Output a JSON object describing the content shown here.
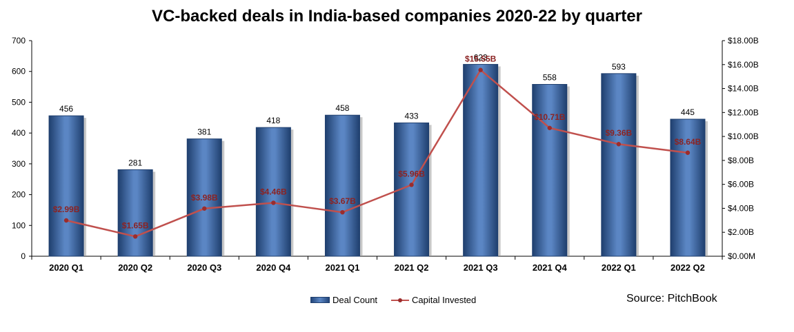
{
  "title": "VC-backed deals in India-based companies 2020-22 by quarter",
  "source": "Source: PitchBook",
  "legend": {
    "bar_label": "Deal Count",
    "line_label": "Capital Invested"
  },
  "colors": {
    "bar": "#4f7fbf",
    "bar_dark": "#23467a",
    "line": "#c0504d",
    "marker": "#9b2c2c",
    "line_label": "#8b2323"
  },
  "chart_data": {
    "type": "bar",
    "title": "VC-backed deals in India-based companies 2020-22 by quarter",
    "categories": [
      "2020 Q1",
      "2020 Q2",
      "2020 Q3",
      "2020 Q4",
      "2021 Q1",
      "2021 Q2",
      "2021 Q3",
      "2021 Q4",
      "2022 Q1",
      "2022 Q2"
    ],
    "series": [
      {
        "name": "Deal Count",
        "type": "bar",
        "axis": "left",
        "values": [
          456,
          281,
          381,
          418,
          458,
          433,
          623,
          558,
          593,
          445
        ]
      },
      {
        "name": "Capital Invested",
        "type": "line",
        "axis": "right",
        "values": [
          2.99,
          1.65,
          3.98,
          4.46,
          3.67,
          5.96,
          15.55,
          10.71,
          9.36,
          8.64
        ],
        "value_labels": [
          "$2.99B",
          "$1.65B",
          "$3.98B",
          "$4.46B",
          "$3.67B",
          "$5.96B",
          "$15.55B",
          "$10.71B",
          "$9.36B",
          "$8.64B"
        ]
      }
    ],
    "y_left": {
      "lim": [
        0,
        700
      ],
      "ticks": [
        0,
        100,
        200,
        300,
        400,
        500,
        600,
        700
      ],
      "tick_labels": [
        "0",
        "100",
        "200",
        "300",
        "400",
        "500",
        "600",
        "700"
      ]
    },
    "y_right": {
      "lim": [
        0,
        18
      ],
      "ticks": [
        0,
        2,
        4,
        6,
        8,
        10,
        12,
        14,
        16,
        18
      ],
      "tick_labels": [
        "$0.00M",
        "$2.00B",
        "$4.00B",
        "$6.00B",
        "$8.00B",
        "$10.00B",
        "$12.00B",
        "$14.00B",
        "$16.00B",
        "$18.00B"
      ]
    },
    "grid": false,
    "legend_position": "bottom"
  }
}
